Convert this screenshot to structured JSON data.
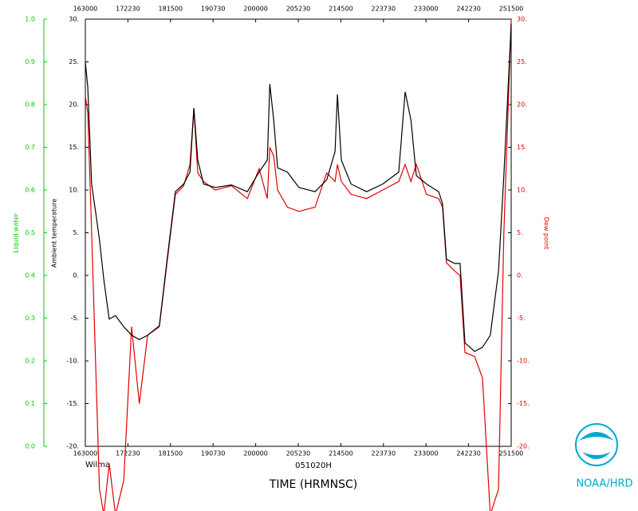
{
  "chart_data": {
    "type": "line",
    "title": "TIME (HRMNSC)",
    "subtitle": "051020H",
    "storm": "Wilma",
    "credit": "NOAA/HRD",
    "ylabel": "Ambient temperature",
    "y2label": "Dew point",
    "y3label": "Liquid water",
    "x": [
      16.5,
      16.55,
      16.63,
      16.71,
      16.79,
      16.88,
      16.99,
      17.12,
      17.29,
      17.45,
      17.61,
      17.78,
      18.02,
      18.19,
      18.35,
      18.52,
      18.65,
      18.73,
      18.81,
      18.93,
      19.17,
      19.5,
      19.83,
      20.07,
      20.24,
      20.29,
      20.37,
      20.45,
      20.65,
      20.89,
      21.22,
      21.46,
      21.63,
      21.68,
      21.76,
      21.96,
      22.28,
      22.61,
      22.94,
      23.07,
      23.19,
      23.3,
      23.51,
      23.76,
      23.84,
      23.92,
      24.09,
      24.2,
      24.3,
      24.5,
      24.66,
      24.82,
      24.99,
      25.1,
      25.25
    ],
    "series": [
      {
        "name": "Ambient temperature",
        "color": "#000000",
        "values": [
          25,
          22,
          10.7,
          7.5,
          4.2,
          -0.5,
          -5.1,
          -4.7,
          -6,
          -7,
          -7.5,
          -7,
          -5.9,
          2.3,
          9.8,
          10.7,
          12.1,
          19.6,
          13.5,
          10.7,
          10.3,
          10.6,
          9.8,
          12.1,
          13.5,
          22.4,
          18.2,
          12.6,
          12.1,
          10.3,
          9.8,
          11.2,
          14.5,
          21.2,
          13.5,
          10.7,
          9.8,
          10.7,
          12.1,
          21.5,
          18.2,
          11.7,
          10.7,
          9.8,
          8.4,
          1.9,
          1.4,
          1.4,
          -7.9,
          -8.9,
          -8.4,
          -7,
          0.5,
          11.7,
          29.4
        ]
      },
      {
        "name": "Dew point",
        "color": "#e00000",
        "axis": "y2",
        "values": [
          21,
          19,
          5,
          -10,
          -25,
          -28,
          -22,
          -28,
          -24,
          -6,
          -15,
          -7,
          -6,
          2,
          9.5,
          10.5,
          13,
          19.5,
          12,
          11,
          10,
          10.5,
          9,
          12.5,
          9,
          15,
          14,
          10,
          8,
          7.5,
          8,
          12,
          11,
          13,
          11,
          9.5,
          9,
          10,
          11,
          13,
          11,
          13,
          9.5,
          9,
          8,
          1.5,
          0.5,
          0,
          -9,
          -9.5,
          -12,
          -28,
          -25,
          5,
          30
        ]
      }
    ],
    "xlim": [
      16.5,
      25.25
    ],
    "xticks": [
      {
        "value": 16.5,
        "label": "163000"
      },
      {
        "value": 17.375,
        "label": "172230"
      },
      {
        "value": 18.25,
        "label": "181500"
      },
      {
        "value": 19.125,
        "label": "190730"
      },
      {
        "value": 20,
        "label": "200000"
      },
      {
        "value": 20.875,
        "label": "205230"
      },
      {
        "value": 21.75,
        "label": "214500"
      },
      {
        "value": 22.625,
        "label": "223730"
      },
      {
        "value": 23.5,
        "label": "233000"
      },
      {
        "value": 24.375,
        "label": "242230"
      },
      {
        "value": 25.25,
        "label": "251500"
      }
    ],
    "ylim": [
      -20,
      30
    ],
    "yticks": [
      {
        "value": -20,
        "label": "-20."
      },
      {
        "value": -15,
        "label": "-15."
      },
      {
        "value": -10,
        "label": "-10."
      },
      {
        "value": -5,
        "label": "-5."
      },
      {
        "value": 0,
        "label": "0."
      },
      {
        "value": 5,
        "label": "5."
      },
      {
        "value": 10,
        "label": "10."
      },
      {
        "value": 15,
        "label": "15."
      },
      {
        "value": 20,
        "label": "20."
      },
      {
        "value": 25,
        "label": "25."
      },
      {
        "value": 30,
        "label": "30."
      }
    ],
    "y2lim": [
      -20,
      30
    ],
    "y2ticks": [
      {
        "value": -20,
        "label": "-20."
      },
      {
        "value": -15,
        "label": "-15."
      },
      {
        "value": -10,
        "label": "-10."
      },
      {
        "value": -5,
        "label": "-5."
      },
      {
        "value": 0,
        "label": "0."
      },
      {
        "value": 5,
        "label": "5."
      },
      {
        "value": 10,
        "label": "10."
      },
      {
        "value": 15,
        "label": "15."
      },
      {
        "value": 20,
        "label": "20."
      },
      {
        "value": 25,
        "label": "25."
      },
      {
        "value": 30,
        "label": "30."
      }
    ],
    "y3lim": [
      0,
      1
    ],
    "y3ticks": [
      {
        "value": 0,
        "label": "0.0"
      },
      0.1,
      0.2,
      0.3,
      0.4,
      0.5,
      0.6,
      0.7,
      0.8,
      0.9,
      {
        "value": 1,
        "label": "1.0"
      }
    ]
  }
}
